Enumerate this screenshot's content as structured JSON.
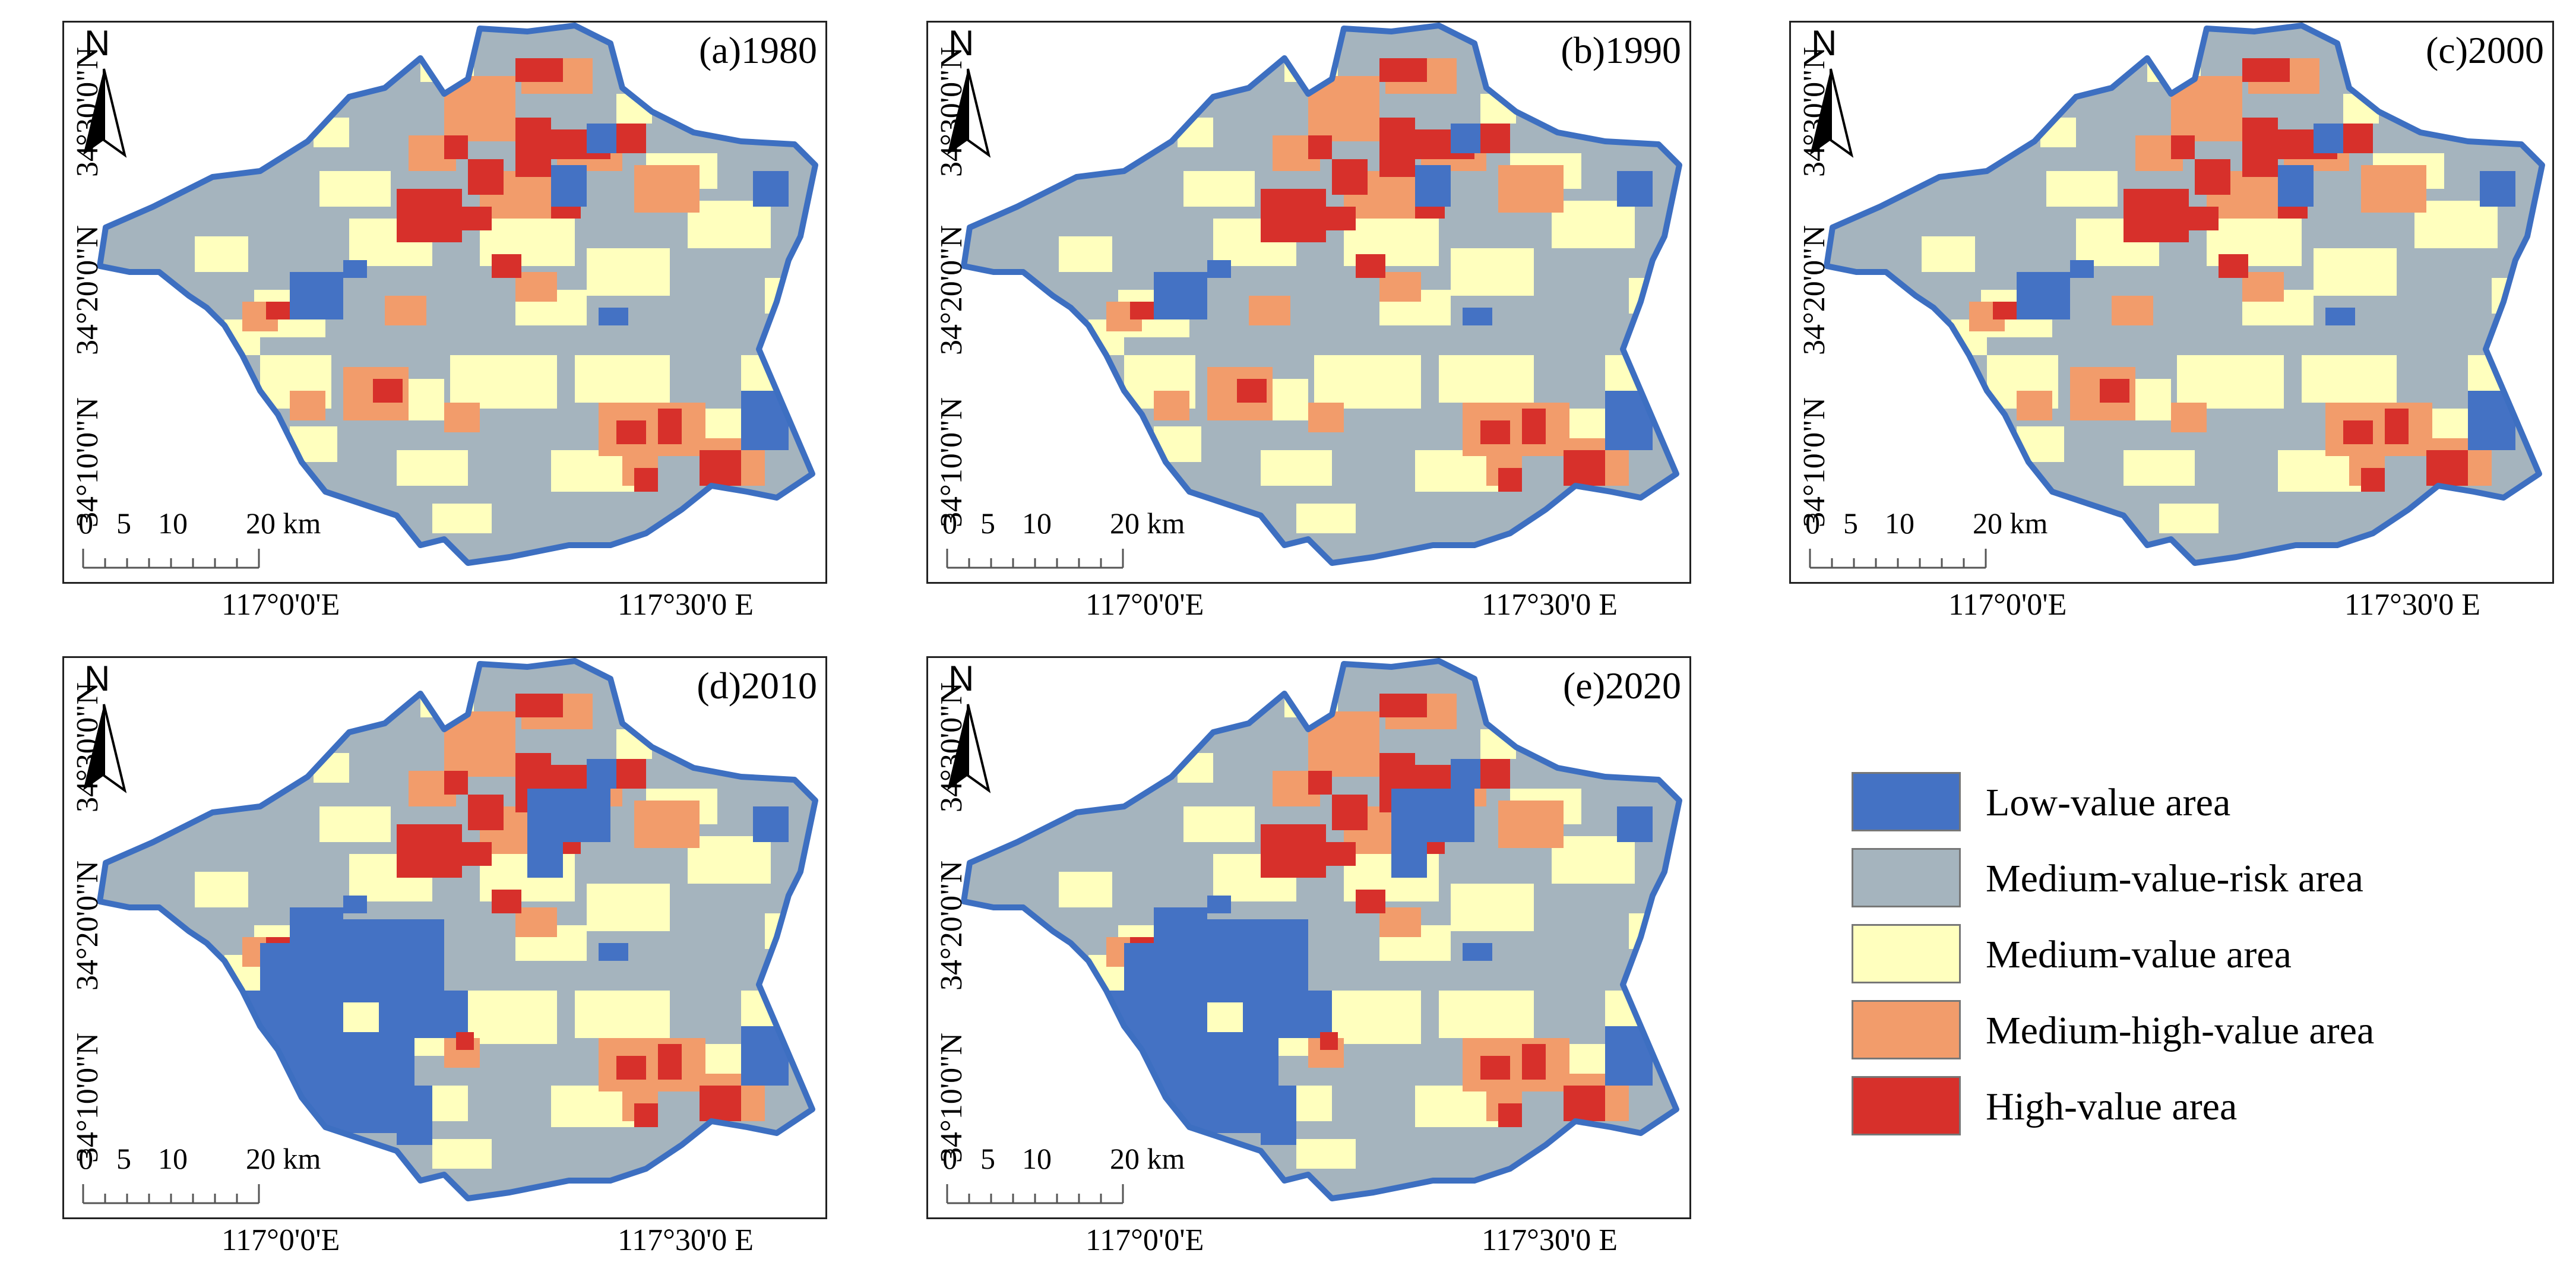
{
  "figure": {
    "panels": [
      {
        "id": "a",
        "title": "(a)1980",
        "low_value_extent": "small"
      },
      {
        "id": "b",
        "title": "(b)1990",
        "low_value_extent": "small"
      },
      {
        "id": "c",
        "title": "(c)2000",
        "low_value_extent": "small"
      },
      {
        "id": "d",
        "title": "(d)2010",
        "low_value_extent": "large"
      },
      {
        "id": "e",
        "title": "(e)2020",
        "low_value_extent": "large"
      }
    ],
    "north_label": "N",
    "latitude_labels": [
      "34°30'0\"N",
      "34°20'0\"N",
      "34°10'0\"N"
    ],
    "longitude_labels": [
      "117°0'0'E",
      "117°30'0 E"
    ],
    "scale_bar": {
      "ticks": [
        "0",
        "5",
        "10",
        "20 km"
      ]
    }
  },
  "legend": {
    "items": [
      {
        "label": "Low-value area",
        "color": "#4472c4"
      },
      {
        "label": "Medium-value-risk area",
        "color": "#a5b4be"
      },
      {
        "label": "Medium-value area",
        "color": "#ffffbe"
      },
      {
        "label": "Medium-high-value area",
        "color": "#f29c6b"
      },
      {
        "label": "High-value area",
        "color": "#d7302b"
      }
    ]
  },
  "colors": {
    "outline": "#3d6fc1",
    "low": "#4472c4",
    "med_risk": "#a5b4be",
    "medium": "#ffffbe",
    "med_high": "#f29c6b",
    "high": "#d7302b"
  }
}
